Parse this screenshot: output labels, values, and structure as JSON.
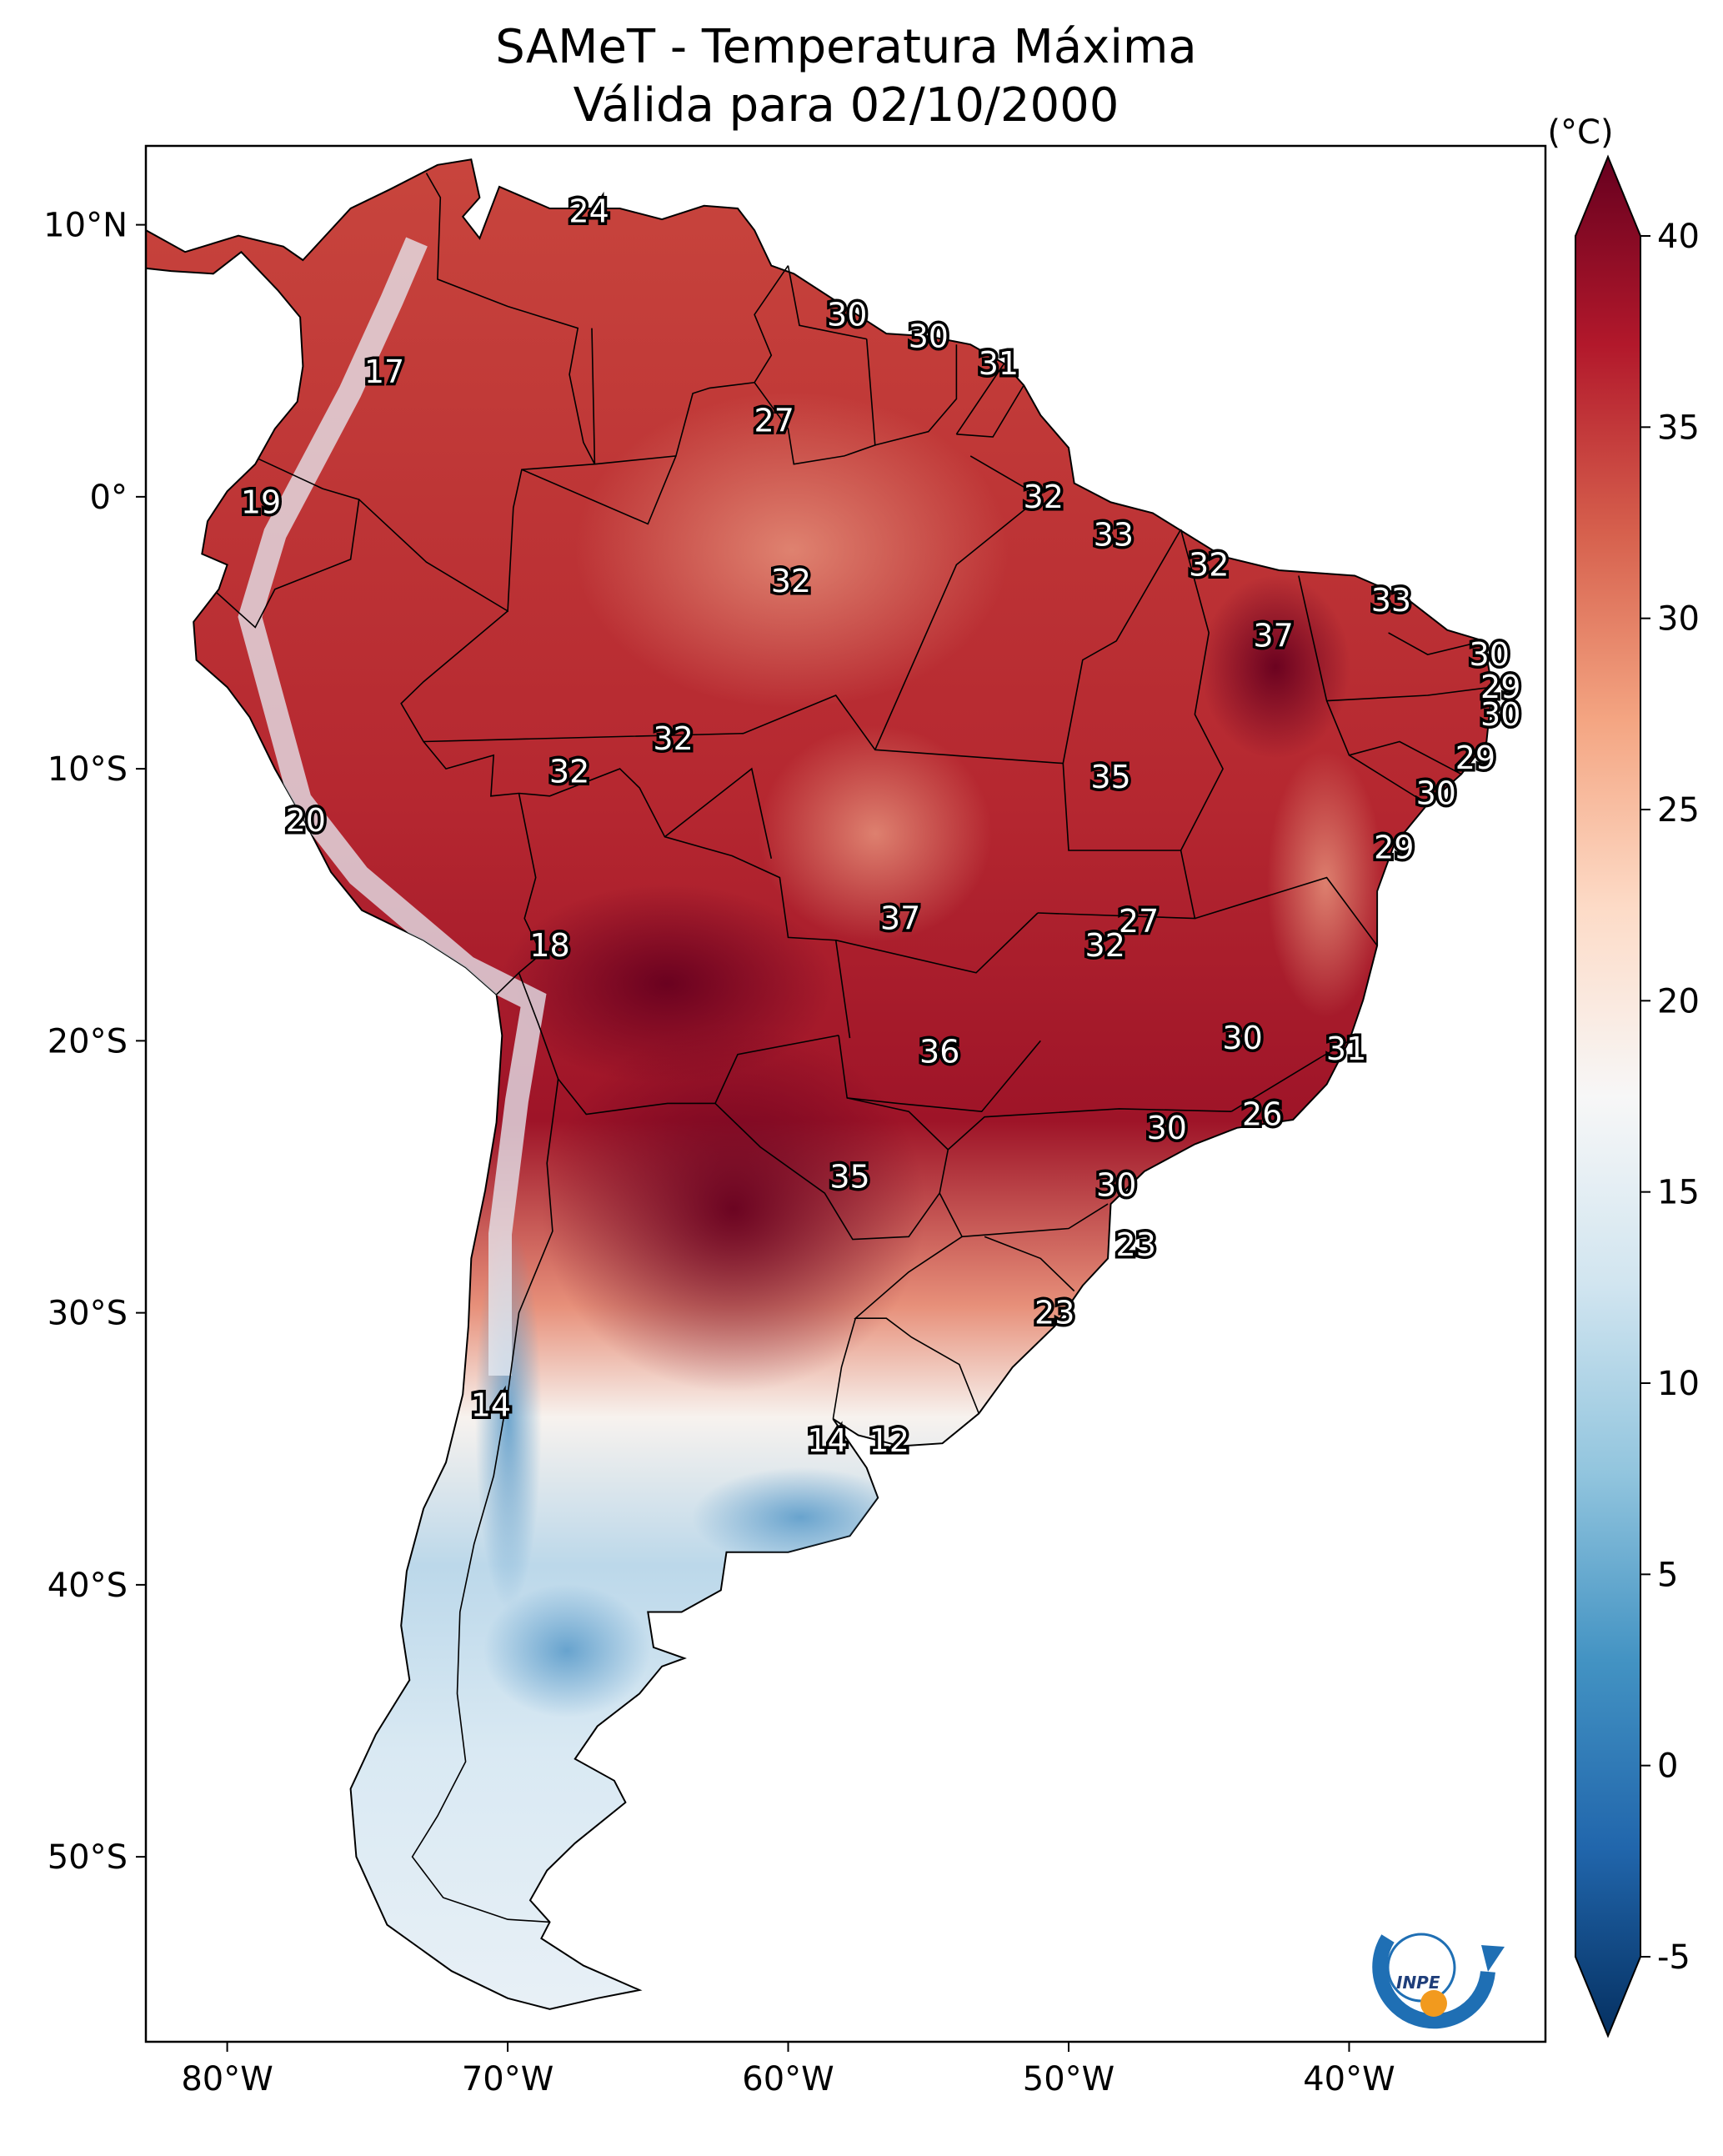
{
  "title": {
    "line1": "SAMeT - Temperatura Máxima",
    "line2": "Válida para 02/10/2000"
  },
  "colorbar": {
    "unit": "(°C)",
    "ticks": [
      "40",
      "35",
      "30",
      "25",
      "20",
      "15",
      "10",
      "5",
      "0",
      "-5"
    ],
    "colors": [
      "#67001f",
      "#b2182b",
      "#d6604d",
      "#f4a582",
      "#fddbc7",
      "#f7f7f7",
      "#d1e5f0",
      "#92c5de",
      "#4393c3",
      "#2166ac",
      "#053061"
    ]
  },
  "axes": {
    "lat_labels": [
      "10°N",
      "0°",
      "10°S",
      "20°S",
      "30°S",
      "40°S",
      "50°S"
    ],
    "lon_labels": [
      "80°W",
      "70°W",
      "60°W",
      "50°W",
      "40°W"
    ]
  },
  "temperature_labels": [
    {
      "t": "24",
      "lon": -67.1,
      "lat": 10.5
    },
    {
      "t": "30",
      "lon": -57.9,
      "lat": 6.7
    },
    {
      "t": "30",
      "lon": -55.0,
      "lat": 5.9
    },
    {
      "t": "31",
      "lon": -52.5,
      "lat": 4.9
    },
    {
      "t": "17",
      "lon": -74.4,
      "lat": 4.6
    },
    {
      "t": "27",
      "lon": -60.5,
      "lat": 2.8
    },
    {
      "t": "19",
      "lon": -78.8,
      "lat": -0.2
    },
    {
      "t": "32",
      "lon": -50.9,
      "lat": 0.0
    },
    {
      "t": "33",
      "lon": -48.4,
      "lat": -1.4
    },
    {
      "t": "32",
      "lon": -59.9,
      "lat": -3.1
    },
    {
      "t": "32",
      "lon": -45.0,
      "lat": -2.5
    },
    {
      "t": "33",
      "lon": -38.5,
      "lat": -3.8
    },
    {
      "t": "37",
      "lon": -42.7,
      "lat": -5.1
    },
    {
      "t": "30",
      "lon": -35.0,
      "lat": -5.8
    },
    {
      "t": "29",
      "lon": -34.6,
      "lat": -7.0
    },
    {
      "t": "30",
      "lon": -34.6,
      "lat": -8.0
    },
    {
      "t": "32",
      "lon": -64.1,
      "lat": -8.9
    },
    {
      "t": "32",
      "lon": -67.8,
      "lat": -10.1
    },
    {
      "t": "35",
      "lon": -48.5,
      "lat": -10.3
    },
    {
      "t": "29",
      "lon": -35.5,
      "lat": -9.6
    },
    {
      "t": "30",
      "lon": -36.9,
      "lat": -10.9
    },
    {
      "t": "20",
      "lon": -77.2,
      "lat": -11.9
    },
    {
      "t": "29",
      "lon": -38.4,
      "lat": -12.9
    },
    {
      "t": "37",
      "lon": -56.0,
      "lat": -15.5
    },
    {
      "t": "27",
      "lon": -47.5,
      "lat": -15.6
    },
    {
      "t": "32",
      "lon": -48.7,
      "lat": -16.5
    },
    {
      "t": "18",
      "lon": -68.5,
      "lat": -16.5
    },
    {
      "t": "30",
      "lon": -43.8,
      "lat": -19.9
    },
    {
      "t": "31",
      "lon": -40.1,
      "lat": -20.3
    },
    {
      "t": "36",
      "lon": -54.6,
      "lat": -20.4
    },
    {
      "t": "26",
      "lon": -43.1,
      "lat": -22.7
    },
    {
      "t": "30",
      "lon": -46.5,
      "lat": -23.2
    },
    {
      "t": "30",
      "lon": -48.3,
      "lat": -25.3
    },
    {
      "t": "35",
      "lon": -57.8,
      "lat": -25.0
    },
    {
      "t": "23",
      "lon": -47.6,
      "lat": -27.5
    },
    {
      "t": "23",
      "lon": -50.5,
      "lat": -30.0
    },
    {
      "t": "14",
      "lon": -70.6,
      "lat": -33.4
    },
    {
      "t": "14",
      "lon": -58.6,
      "lat": -34.7
    },
    {
      "t": "12",
      "lon": -56.4,
      "lat": -34.7
    }
  ]
}
